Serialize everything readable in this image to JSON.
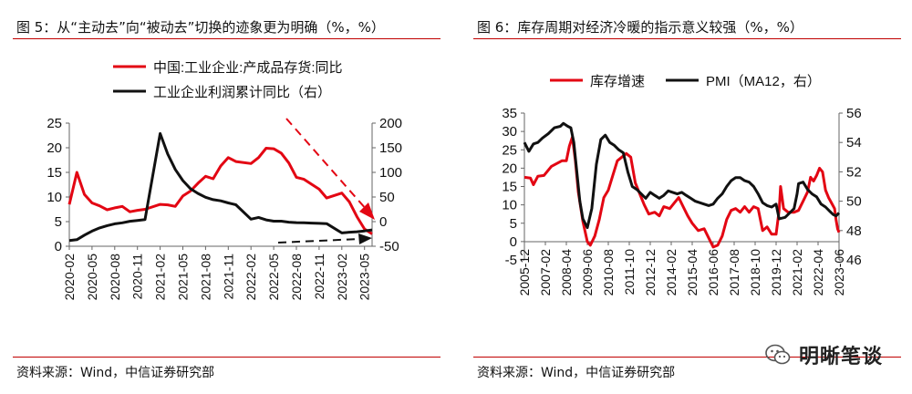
{
  "panels": [
    {
      "title": "图 5：从“主动去”向“被动去”切换的迹象更为明确（%，%）",
      "source": "资料来源：Wind，中信证券研究部"
    },
    {
      "title": "图 6：库存周期对经济冷暖的指示意义较强（%，%）",
      "source": "资料来源：Wind，中信证券研究部"
    }
  ],
  "watermark": {
    "text": "明晰笔谈",
    "icon": "wechat-icon"
  },
  "chart_data": [
    {
      "type": "line",
      "x": [
        "2020-02",
        "2020-03",
        "2020-04",
        "2020-05",
        "2020-06",
        "2020-07",
        "2020-08",
        "2020-09",
        "2020-10",
        "2020-11",
        "2020-12",
        "2021-02",
        "2021-03",
        "2021-04",
        "2021-05",
        "2021-06",
        "2021-07",
        "2021-08",
        "2021-09",
        "2021-10",
        "2021-11",
        "2021-12",
        "2022-02",
        "2022-03",
        "2022-04",
        "2022-05",
        "2022-06",
        "2022-07",
        "2022-08",
        "2022-09",
        "2022-10",
        "2022-11",
        "2022-12",
        "2023-02",
        "2023-03",
        "2023-04",
        "2023-05",
        "2023-06"
      ],
      "xticks": [
        "2020-02",
        "2020-05",
        "2020-08",
        "2020-11",
        "2021-02",
        "2021-05",
        "2021-08",
        "2021-11",
        "2022-02",
        "2022-05",
        "2022-08",
        "2022-11",
        "2023-02",
        "2023-05"
      ],
      "legend_position": "top-left",
      "y_left": {
        "min": 0,
        "max": 25,
        "ticks": [
          0,
          5,
          10,
          15,
          20,
          25
        ]
      },
      "y_right": {
        "min": -50,
        "max": 200,
        "ticks": [
          -50,
          0,
          50,
          100,
          150,
          200
        ]
      },
      "series": [
        {
          "name": "中国:工业企业:产成品存货:同比",
          "axis": "left",
          "color": "#e30613",
          "values": [
            8.5,
            15.0,
            10.5,
            8.8,
            8.2,
            7.4,
            7.8,
            8.1,
            7.0,
            7.3,
            7.5,
            8.5,
            8.4,
            8.1,
            10.2,
            11.2,
            12.8,
            14.2,
            13.7,
            16.3,
            18.0,
            17.2,
            16.8,
            18.0,
            19.9,
            19.8,
            18.9,
            16.9,
            14.0,
            13.6,
            12.6,
            11.6,
            9.8,
            10.8,
            9.0,
            6.0,
            3.5,
            2.5
          ]
        },
        {
          "name": "工业企业利润累计同比（右）",
          "axis": "right",
          "color": "#111111",
          "values": [
            -38.3,
            -36.7,
            -27.4,
            -19.3,
            -12.8,
            -8.1,
            -4.4,
            -2.4,
            0.7,
            2.4,
            4.1,
            178.9,
            137.3,
            106.0,
            83.4,
            66.9,
            57.3,
            49.5,
            44.7,
            42.2,
            38.0,
            34.3,
            5.0,
            8.5,
            3.5,
            1.0,
            1.0,
            -1.1,
            -2.1,
            -2.3,
            -3.0,
            -3.6,
            -4.0,
            -22.9,
            -21.4,
            -20.6,
            -18.8,
            -16.8
          ]
        }
      ]
    },
    {
      "type": "line",
      "x_start": "2005-12",
      "x_end": "2023-06",
      "xticks": [
        "2005-12",
        "2007-02",
        "2008-04",
        "2009-06",
        "2010-08",
        "2011-10",
        "2012-12",
        "2014-02",
        "2015-04",
        "2016-06",
        "2017-08",
        "2018-10",
        "2019-12",
        "2021-02",
        "2022-04",
        "2023-06"
      ],
      "legend_position": "top-center",
      "y_left": {
        "min": -5,
        "max": 35,
        "ticks": [
          -5,
          0,
          5,
          10,
          15,
          20,
          25,
          30,
          35
        ]
      },
      "y_right": {
        "min": 46,
        "max": 56,
        "ticks": [
          46,
          48,
          50,
          52,
          54,
          56
        ]
      },
      "series": [
        {
          "name": "库存增速",
          "axis": "left",
          "color": "#e30613",
          "points": [
            [
              "2005-12",
              17.5
            ],
            [
              "2006-04",
              17.3
            ],
            [
              "2006-06",
              15.5
            ],
            [
              "2006-09",
              17.8
            ],
            [
              "2007-01",
              18.0
            ],
            [
              "2007-06",
              20.5
            ],
            [
              "2008-01",
              22.0
            ],
            [
              "2008-04",
              22.0
            ],
            [
              "2008-06",
              26.0
            ],
            [
              "2008-08",
              28.5
            ],
            [
              "2008-10",
              22.0
            ],
            [
              "2008-12",
              13.5
            ],
            [
              "2009-03",
              5.5
            ],
            [
              "2009-06",
              0.0
            ],
            [
              "2009-08",
              -1.0
            ],
            [
              "2009-11",
              1.5
            ],
            [
              "2010-02",
              6.0
            ],
            [
              "2010-05",
              12.0
            ],
            [
              "2010-08",
              14.0
            ],
            [
              "2010-11",
              18.0
            ],
            [
              "2011-02",
              22.0
            ],
            [
              "2011-05",
              23.0
            ],
            [
              "2011-08",
              24.0
            ],
            [
              "2011-11",
              23.0
            ],
            [
              "2012-02",
              16.0
            ],
            [
              "2012-05",
              13.0
            ],
            [
              "2012-08",
              10.0
            ],
            [
              "2012-11",
              7.5
            ],
            [
              "2013-03",
              8.0
            ],
            [
              "2013-06",
              7.0
            ],
            [
              "2013-09",
              9.5
            ],
            [
              "2014-01",
              9.0
            ],
            [
              "2014-04",
              10.5
            ],
            [
              "2014-07",
              12.0
            ],
            [
              "2014-10",
              9.5
            ],
            [
              "2015-01",
              7.0
            ],
            [
              "2015-04",
              5.0
            ],
            [
              "2015-08",
              3.0
            ],
            [
              "2015-12",
              3.5
            ],
            [
              "2016-03",
              1.0
            ],
            [
              "2016-06",
              -1.5
            ],
            [
              "2016-09",
              -1.0
            ],
            [
              "2016-12",
              1.5
            ],
            [
              "2017-03",
              6.0
            ],
            [
              "2017-06",
              8.5
            ],
            [
              "2017-09",
              9.0
            ],
            [
              "2017-12",
              8.0
            ],
            [
              "2018-03",
              9.5
            ],
            [
              "2018-06",
              8.0
            ],
            [
              "2018-09",
              9.5
            ],
            [
              "2018-12",
              9.0
            ],
            [
              "2019-03",
              3.0
            ],
            [
              "2019-06",
              4.0
            ],
            [
              "2019-09",
              2.0
            ],
            [
              "2019-12",
              2.0
            ],
            [
              "2020-02",
              8.5
            ],
            [
              "2020-03",
              15.0
            ],
            [
              "2020-05",
              9.0
            ],
            [
              "2020-08",
              8.0
            ],
            [
              "2020-12",
              8.0
            ],
            [
              "2021-03",
              8.5
            ],
            [
              "2021-06",
              11.0
            ],
            [
              "2021-09",
              13.5
            ],
            [
              "2021-11",
              17.5
            ],
            [
              "2022-01",
              16.5
            ],
            [
              "2022-03",
              18.0
            ],
            [
              "2022-05",
              20.0
            ],
            [
              "2022-07",
              19.0
            ],
            [
              "2022-09",
              14.0
            ],
            [
              "2022-11",
              12.0
            ],
            [
              "2023-01",
              10.5
            ],
            [
              "2023-03",
              9.0
            ],
            [
              "2023-04",
              6.0
            ],
            [
              "2023-05",
              3.5
            ],
            [
              "2023-06",
              2.5
            ]
          ]
        },
        {
          "name": "PMI（MA12，右）",
          "axis": "right",
          "color": "#111111",
          "points": [
            [
              "2005-12",
              54.0
            ],
            [
              "2006-03",
              53.4
            ],
            [
              "2006-06",
              53.9
            ],
            [
              "2006-09",
              54.0
            ],
            [
              "2006-12",
              54.3
            ],
            [
              "2007-04",
              54.6
            ],
            [
              "2007-08",
              55.0
            ],
            [
              "2007-12",
              55.1
            ],
            [
              "2008-02",
              55.3
            ],
            [
              "2008-05",
              55.1
            ],
            [
              "2008-07",
              55.0
            ],
            [
              "2008-09",
              54.0
            ],
            [
              "2008-11",
              52.0
            ],
            [
              "2009-01",
              50.0
            ],
            [
              "2009-03",
              48.8
            ],
            [
              "2009-06",
              48.2
            ],
            [
              "2009-09",
              49.5
            ],
            [
              "2009-12",
              52.5
            ],
            [
              "2010-03",
              54.2
            ],
            [
              "2010-06",
              54.5
            ],
            [
              "2010-09",
              54.0
            ],
            [
              "2010-12",
              53.8
            ],
            [
              "2011-03",
              53.5
            ],
            [
              "2011-06",
              53.3
            ],
            [
              "2011-09",
              52.0
            ],
            [
              "2011-12",
              51.0
            ],
            [
              "2012-03",
              50.8
            ],
            [
              "2012-06",
              50.5
            ],
            [
              "2012-09",
              50.2
            ],
            [
              "2012-12",
              50.6
            ],
            [
              "2013-03",
              50.4
            ],
            [
              "2013-06",
              50.2
            ],
            [
              "2013-09",
              50.4
            ],
            [
              "2013-12",
              50.7
            ],
            [
              "2014-03",
              50.6
            ],
            [
              "2014-06",
              50.5
            ],
            [
              "2014-09",
              50.6
            ],
            [
              "2014-12",
              50.4
            ],
            [
              "2015-03",
              50.2
            ],
            [
              "2015-06",
              50.0
            ],
            [
              "2015-09",
              49.9
            ],
            [
              "2015-12",
              49.8
            ],
            [
              "2016-03",
              49.7
            ],
            [
              "2016-06",
              49.8
            ],
            [
              "2016-09",
              50.2
            ],
            [
              "2016-12",
              50.5
            ],
            [
              "2017-03",
              51.0
            ],
            [
              "2017-06",
              51.4
            ],
            [
              "2017-09",
              51.6
            ],
            [
              "2017-12",
              51.6
            ],
            [
              "2018-03",
              51.4
            ],
            [
              "2018-06",
              51.3
            ],
            [
              "2018-09",
              51.0
            ],
            [
              "2018-12",
              50.5
            ],
            [
              "2019-03",
              49.9
            ],
            [
              "2019-06",
              49.7
            ],
            [
              "2019-09",
              49.6
            ],
            [
              "2019-12",
              49.8
            ],
            [
              "2020-02",
              48.8
            ],
            [
              "2020-06",
              48.9
            ],
            [
              "2020-12",
              49.5
            ],
            [
              "2021-02",
              50.5
            ],
            [
              "2021-03",
              51.2
            ],
            [
              "2021-06",
              51.3
            ],
            [
              "2021-09",
              50.8
            ],
            [
              "2021-12",
              50.5
            ],
            [
              "2022-03",
              50.3
            ],
            [
              "2022-06",
              49.8
            ],
            [
              "2022-09",
              49.6
            ],
            [
              "2022-12",
              49.3
            ],
            [
              "2023-02",
              49.1
            ],
            [
              "2023-04",
              49.0
            ],
            [
              "2023-06",
              49.2
            ]
          ]
        }
      ]
    }
  ]
}
